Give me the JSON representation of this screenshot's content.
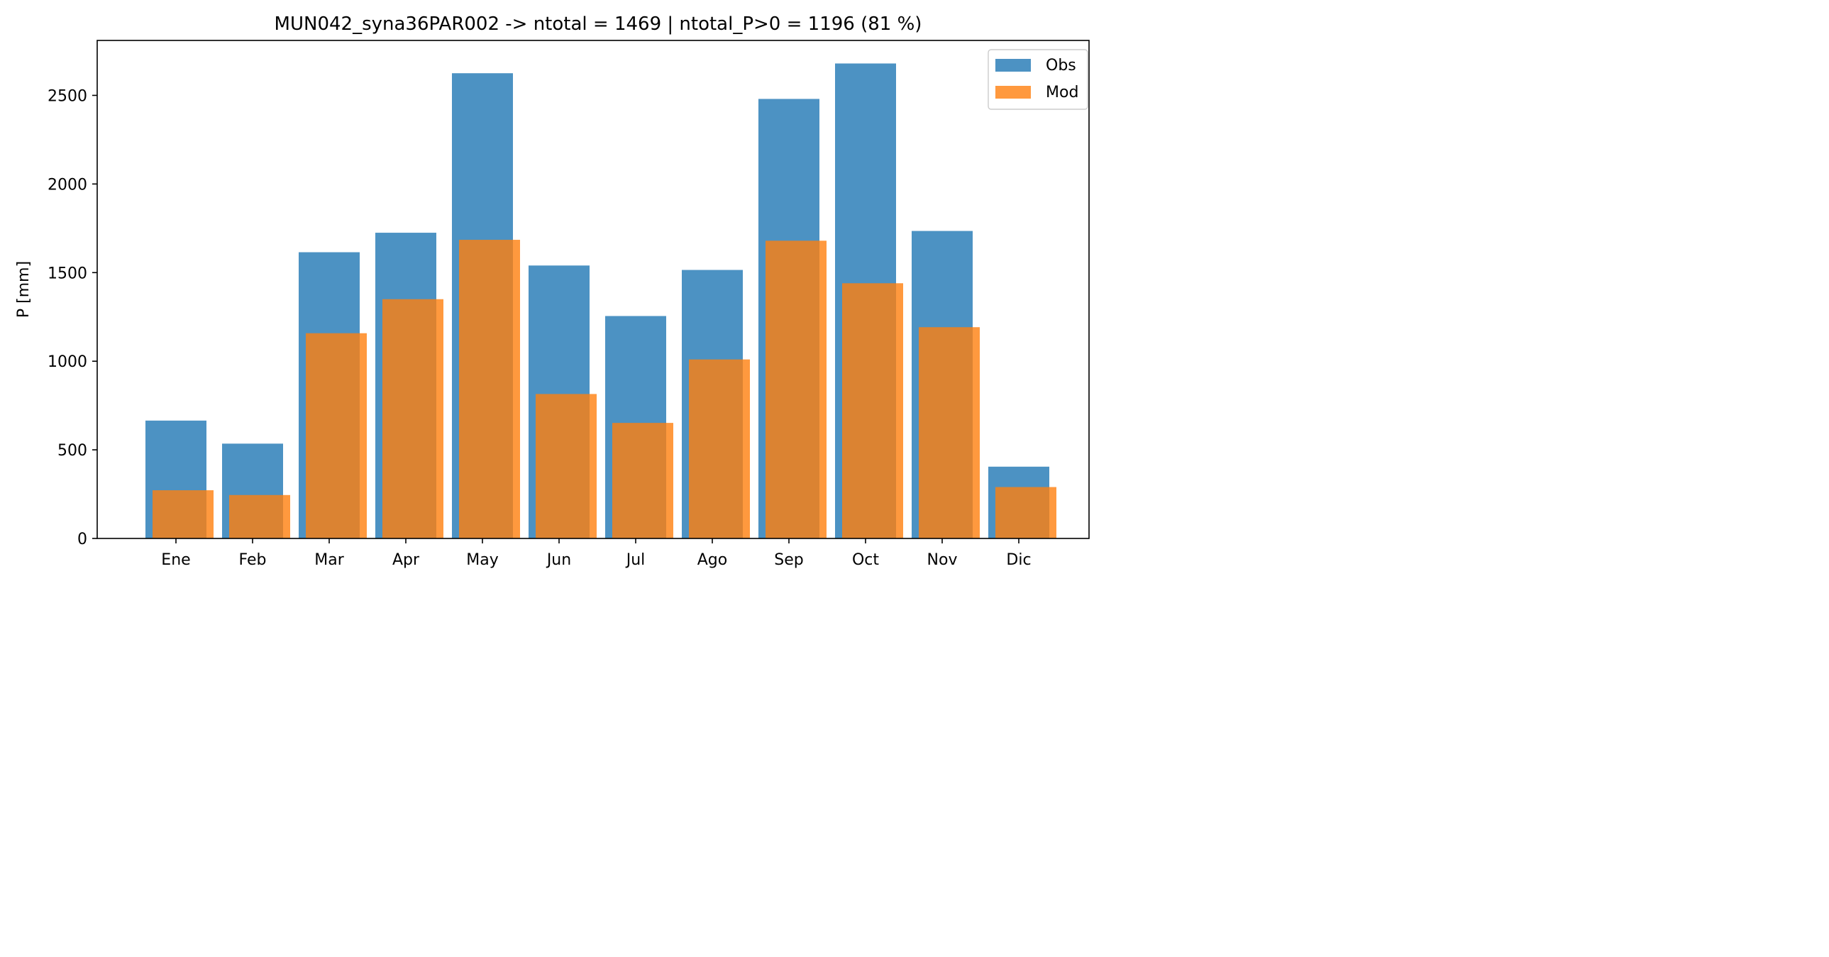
{
  "chart_data": {
    "type": "bar",
    "title": "MUN042_syna36PAR002 -> ntotal = 1469 | ntotal_P>0 = 1196 (81 %)",
    "xlabel": "",
    "ylabel": "P [mm]",
    "categories": [
      "Ene",
      "Feb",
      "Mar",
      "Apr",
      "May",
      "Jun",
      "Jul",
      "Ago",
      "Sep",
      "Oct",
      "Nov",
      "Dic"
    ],
    "series": [
      {
        "name": "Obs",
        "color": "#1f77b4",
        "values": [
          665,
          535,
          1615,
          1725,
          2625,
          1540,
          1255,
          1515,
          2480,
          2680,
          1735,
          405
        ]
      },
      {
        "name": "Mod",
        "color": "#ff7f0e",
        "values": [
          272,
          245,
          1158,
          1350,
          1685,
          815,
          652,
          1010,
          1680,
          1440,
          1192,
          290
        ]
      }
    ],
    "ylim": [
      0,
      2810
    ],
    "yticks": [
      0,
      500,
      1000,
      1500,
      2000,
      2500
    ],
    "grid": false,
    "legend_position": "top-right"
  }
}
